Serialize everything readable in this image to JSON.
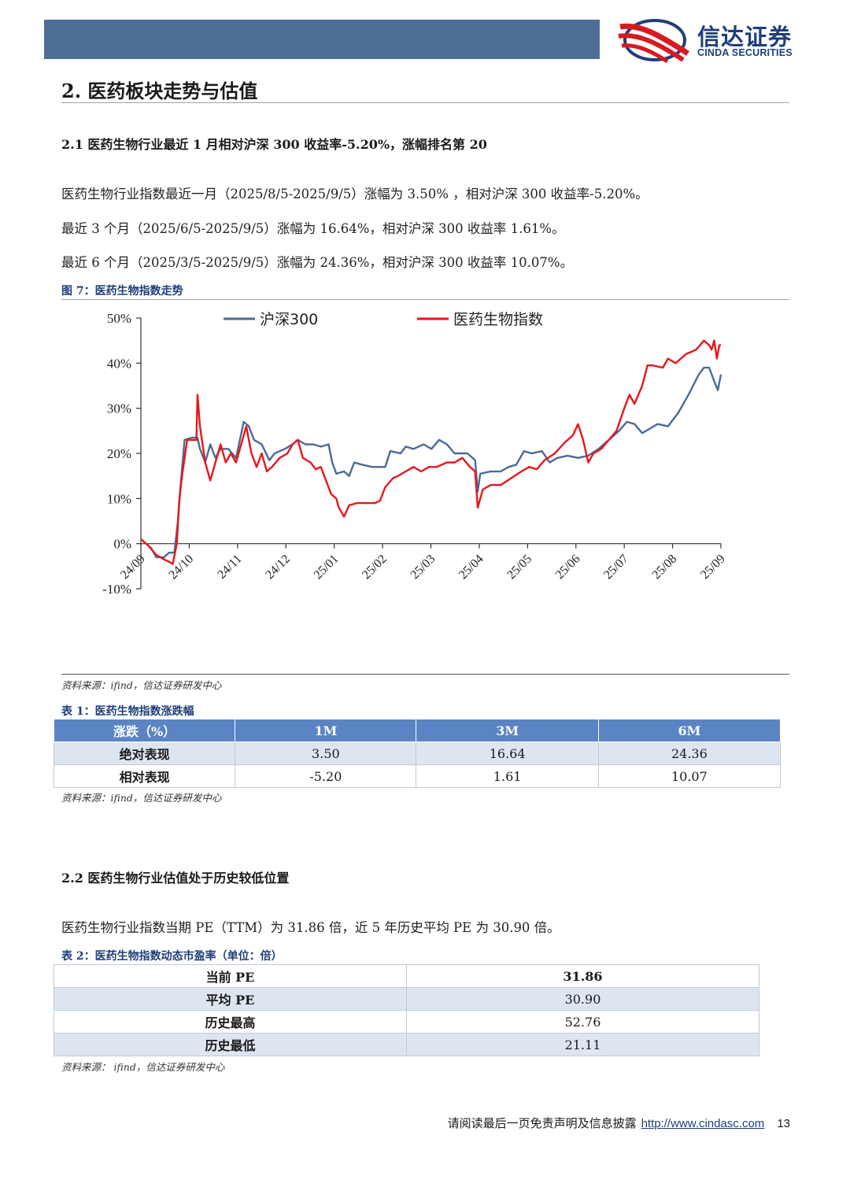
{
  "header": {
    "brand_cn": "信达证券",
    "brand_en": "CINDA SECURITIES",
    "bar_color": "#4e6f95",
    "brand_color": "#1f3e7a",
    "logo_icon": "cinda-logo-icon"
  },
  "section": {
    "title": "2.  医药板块走势与估值"
  },
  "sub1": {
    "title": "2.1 医药生物行业最近 1 月相对沪深 300 收益率-5.20%，涨幅排名第 20",
    "lines": [
      "医药生物行业指数最近一月（2025/8/5-2025/9/5）涨幅为 3.50% ，相对沪深 300 收益率-5.20%。",
      "最近 3 个月（2025/6/5-2025/9/5）涨幅为 16.64%，相对沪深 300 收益率 1.61%。",
      "最近 6 个月（2025/3/5-2025/9/5）涨幅为 24.36%，相对沪深 300 收益率 10.07%。"
    ]
  },
  "figure": {
    "caption": "图 7：医药生物指数走势",
    "source": "资料来源：ifind，信达证券研发中心"
  },
  "chart_data": {
    "type": "line",
    "title": "",
    "xlabel": "",
    "ylabel": "",
    "ylim": [
      -10,
      50
    ],
    "yticks": [
      "-10%",
      "0%",
      "10%",
      "20%",
      "30%",
      "40%",
      "50%"
    ],
    "x_tick_labels": [
      "24/09",
      "24/10",
      "24/11",
      "24/12",
      "25/01",
      "25/02",
      "25/03",
      "25/04",
      "25/05",
      "25/06",
      "25/07",
      "25/08",
      "25/09"
    ],
    "legend_position": "top",
    "grid": false,
    "series": [
      {
        "name": "沪深300",
        "color": "#4a6b96",
        "points": [
          [
            0,
            1
          ],
          [
            0.2,
            -1
          ],
          [
            0.3,
            -3
          ],
          [
            0.45,
            -3
          ],
          [
            0.55,
            -2
          ],
          [
            0.65,
            -2
          ],
          [
            0.72,
            5
          ],
          [
            0.78,
            14
          ],
          [
            0.85,
            23
          ],
          [
            1.0,
            23.5
          ],
          [
            1.1,
            23.5
          ],
          [
            1.15,
            21
          ],
          [
            1.25,
            18
          ],
          [
            1.35,
            22
          ],
          [
            1.45,
            19
          ],
          [
            1.55,
            21
          ],
          [
            1.7,
            21
          ],
          [
            1.85,
            19
          ],
          [
            2.0,
            27
          ],
          [
            2.1,
            26
          ],
          [
            2.2,
            23
          ],
          [
            2.35,
            22
          ],
          [
            2.5,
            18.5
          ],
          [
            2.6,
            20
          ],
          [
            2.8,
            21
          ],
          [
            2.95,
            22
          ],
          [
            3.05,
            23
          ],
          [
            3.2,
            22
          ],
          [
            3.35,
            22
          ],
          [
            3.5,
            21.5
          ],
          [
            3.65,
            22
          ],
          [
            3.72,
            18
          ],
          [
            3.8,
            15.5
          ],
          [
            3.95,
            16
          ],
          [
            4.05,
            15
          ],
          [
            4.15,
            18
          ],
          [
            4.3,
            17.5
          ],
          [
            4.5,
            17
          ],
          [
            4.75,
            17
          ],
          [
            4.85,
            20.5
          ],
          [
            5.05,
            20
          ],
          [
            5.15,
            21.5
          ],
          [
            5.3,
            21
          ],
          [
            5.5,
            22
          ],
          [
            5.65,
            21
          ],
          [
            5.8,
            23
          ],
          [
            5.95,
            22
          ],
          [
            6.1,
            20
          ],
          [
            6.35,
            20
          ],
          [
            6.5,
            18.5
          ],
          [
            6.55,
            11.5
          ],
          [
            6.6,
            15.5
          ],
          [
            6.8,
            16
          ],
          [
            7.0,
            16
          ],
          [
            7.15,
            17
          ],
          [
            7.3,
            17.5
          ],
          [
            7.45,
            20.5
          ],
          [
            7.6,
            20
          ],
          [
            7.8,
            20.5
          ],
          [
            7.95,
            18
          ],
          [
            8.1,
            19
          ],
          [
            8.3,
            19.5
          ],
          [
            8.5,
            19
          ],
          [
            8.7,
            19.5
          ],
          [
            8.9,
            21
          ],
          [
            9.1,
            23
          ],
          [
            9.3,
            25
          ],
          [
            9.45,
            27
          ],
          [
            9.6,
            26.5
          ],
          [
            9.75,
            24.5
          ],
          [
            9.9,
            25.5
          ],
          [
            10.05,
            26.5
          ],
          [
            10.25,
            26
          ],
          [
            10.45,
            29
          ],
          [
            10.65,
            33
          ],
          [
            10.85,
            37.5
          ],
          [
            10.95,
            39
          ],
          [
            11.05,
            39
          ],
          [
            11.15,
            36
          ],
          [
            11.22,
            34
          ],
          [
            11.28,
            37.5
          ]
        ]
      },
      {
        "name": "医药生物指数",
        "color": "#e8161b",
        "points": [
          [
            0,
            1
          ],
          [
            0.15,
            -0.5
          ],
          [
            0.3,
            -2.5
          ],
          [
            0.45,
            -3.5
          ],
          [
            0.55,
            -4
          ],
          [
            0.62,
            -4.5
          ],
          [
            0.7,
            0
          ],
          [
            0.75,
            10
          ],
          [
            0.8,
            15
          ],
          [
            0.9,
            23
          ],
          [
            1.0,
            23
          ],
          [
            1.08,
            23
          ],
          [
            1.1,
            33
          ],
          [
            1.15,
            26
          ],
          [
            1.25,
            18
          ],
          [
            1.35,
            14
          ],
          [
            1.45,
            18
          ],
          [
            1.55,
            22
          ],
          [
            1.65,
            18
          ],
          [
            1.75,
            20
          ],
          [
            1.85,
            18
          ],
          [
            1.95,
            22
          ],
          [
            2.05,
            26
          ],
          [
            2.15,
            20
          ],
          [
            2.25,
            17
          ],
          [
            2.35,
            20
          ],
          [
            2.45,
            16
          ],
          [
            2.55,
            17
          ],
          [
            2.7,
            19
          ],
          [
            2.85,
            20
          ],
          [
            2.95,
            22
          ],
          [
            3.05,
            23
          ],
          [
            3.15,
            19
          ],
          [
            3.3,
            18
          ],
          [
            3.4,
            16.5
          ],
          [
            3.5,
            17
          ],
          [
            3.6,
            14
          ],
          [
            3.7,
            11
          ],
          [
            3.8,
            10
          ],
          [
            3.85,
            8
          ],
          [
            3.95,
            6
          ],
          [
            4.05,
            8.5
          ],
          [
            4.2,
            9
          ],
          [
            4.35,
            9
          ],
          [
            4.55,
            9
          ],
          [
            4.65,
            9.5
          ],
          [
            4.75,
            12.5
          ],
          [
            4.9,
            14.5
          ],
          [
            5.0,
            15
          ],
          [
            5.15,
            16
          ],
          [
            5.3,
            17
          ],
          [
            5.45,
            16
          ],
          [
            5.6,
            17
          ],
          [
            5.75,
            17
          ],
          [
            5.95,
            18
          ],
          [
            6.1,
            18
          ],
          [
            6.25,
            19
          ],
          [
            6.4,
            17
          ],
          [
            6.5,
            16
          ],
          [
            6.55,
            8
          ],
          [
            6.65,
            12
          ],
          [
            6.8,
            13
          ],
          [
            7.0,
            13
          ],
          [
            7.2,
            14.5
          ],
          [
            7.4,
            16
          ],
          [
            7.55,
            17
          ],
          [
            7.7,
            16.5
          ],
          [
            7.85,
            18.5
          ],
          [
            8.05,
            20
          ],
          [
            8.25,
            22.5
          ],
          [
            8.4,
            24
          ],
          [
            8.5,
            26.5
          ],
          [
            8.6,
            23
          ],
          [
            8.7,
            18
          ],
          [
            8.8,
            20
          ],
          [
            8.95,
            21
          ],
          [
            9.1,
            23
          ],
          [
            9.25,
            25
          ],
          [
            9.4,
            30
          ],
          [
            9.5,
            33
          ],
          [
            9.6,
            31
          ],
          [
            9.75,
            35
          ],
          [
            9.85,
            39.5
          ],
          [
            9.95,
            39.5
          ],
          [
            10.15,
            39
          ],
          [
            10.25,
            41
          ],
          [
            10.4,
            40
          ],
          [
            10.6,
            42
          ],
          [
            10.8,
            43
          ],
          [
            10.95,
            45
          ],
          [
            11.05,
            44
          ],
          [
            11.1,
            43
          ],
          [
            11.15,
            45
          ],
          [
            11.2,
            41
          ],
          [
            11.25,
            44
          ],
          [
            11.28,
            44
          ]
        ]
      }
    ]
  },
  "table1": {
    "caption": "表 1：医药生物指数涨跌幅",
    "headers": [
      "涨跌（%）",
      "1M",
      "3M",
      "6M"
    ],
    "rows": [
      [
        "绝对表现",
        "3.50",
        "16.64",
        "24.36"
      ],
      [
        "相对表现",
        "-5.20",
        "1.61",
        "10.07"
      ]
    ],
    "source": "资料来源：ifind，信达证券研发中心"
  },
  "sub2": {
    "title": "2.2 医药生物行业估值处于历史较低位置",
    "line": "医药生物行业指数当期 PE（TTM）为 31.86 倍，近 5 年历史平均 PE 为 30.90 倍。"
  },
  "table2": {
    "caption": "表 2：医药生物指数动态市盈率（单位：倍）",
    "rows": [
      [
        "当前 PE",
        "31.86"
      ],
      [
        "平均 PE",
        "30.90"
      ],
      [
        "历史最高",
        "52.76"
      ],
      [
        "历史最低",
        "21.11"
      ]
    ],
    "source": "资料来源：  ifind，信达证券研发中心"
  },
  "footer": {
    "disclaimer": "请阅读最后一页免责声明及信息披露",
    "url": "http://www.cindasc.com",
    "page": "13"
  }
}
